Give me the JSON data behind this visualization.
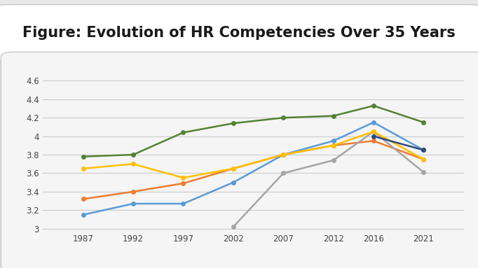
{
  "title": "Figure: Evolution of HR Competencies Over 35 Years",
  "years": [
    1987,
    1992,
    1997,
    2002,
    2007,
    2012,
    2016,
    2021
  ],
  "series": {
    "Business": {
      "values": [
        3.15,
        3.27,
        3.27,
        3.5,
        3.8,
        3.95,
        4.15,
        3.85
      ],
      "color": "#5B9BD5",
      "marker": "o"
    },
    "HR Tools": {
      "values": [
        3.32,
        3.4,
        3.49,
        3.65,
        3.8,
        3.9,
        3.95,
        3.75
      ],
      "color": "#ED7D31",
      "marker": "o"
    },
    "HR Analytics/Information": {
      "values": [
        null,
        null,
        null,
        3.02,
        3.6,
        3.74,
        4.05,
        3.61
      ],
      "color": "#A5A5A5",
      "marker": "o"
    },
    "Change": {
      "values": [
        3.65,
        3.7,
        3.55,
        3.65,
        3.8,
        3.9,
        4.05,
        3.75
      ],
      "color": "#FFC000",
      "marker": "o"
    },
    "Culture": {
      "values": [
        null,
        null,
        null,
        null,
        null,
        null,
        4.0,
        3.85
      ],
      "color": "#2E4A7C",
      "marker": "o"
    },
    "Personal": {
      "values": [
        3.78,
        3.8,
        4.04,
        4.14,
        4.2,
        4.22,
        4.33,
        4.15
      ],
      "color": "#548235",
      "marker": "o"
    }
  },
  "ylim": [
    2.98,
    4.72
  ],
  "yticks": [
    3.0,
    3.2,
    3.4,
    3.6,
    3.8,
    4.0,
    4.2,
    4.4,
    4.6
  ],
  "ytick_labels": [
    "3",
    "3.2",
    "3.4",
    "3.6",
    "3.8",
    "4",
    "4.2",
    "4.4",
    "4.6"
  ],
  "outer_bg": "#e8e8e8",
  "title_box_bg": "#ffffff",
  "chart_box_bg": "#f5f5f5",
  "grid_color": "#cccccc",
  "title_fontsize": 15,
  "tick_fontsize": 8.5,
  "legend_fontsize": 8.5
}
